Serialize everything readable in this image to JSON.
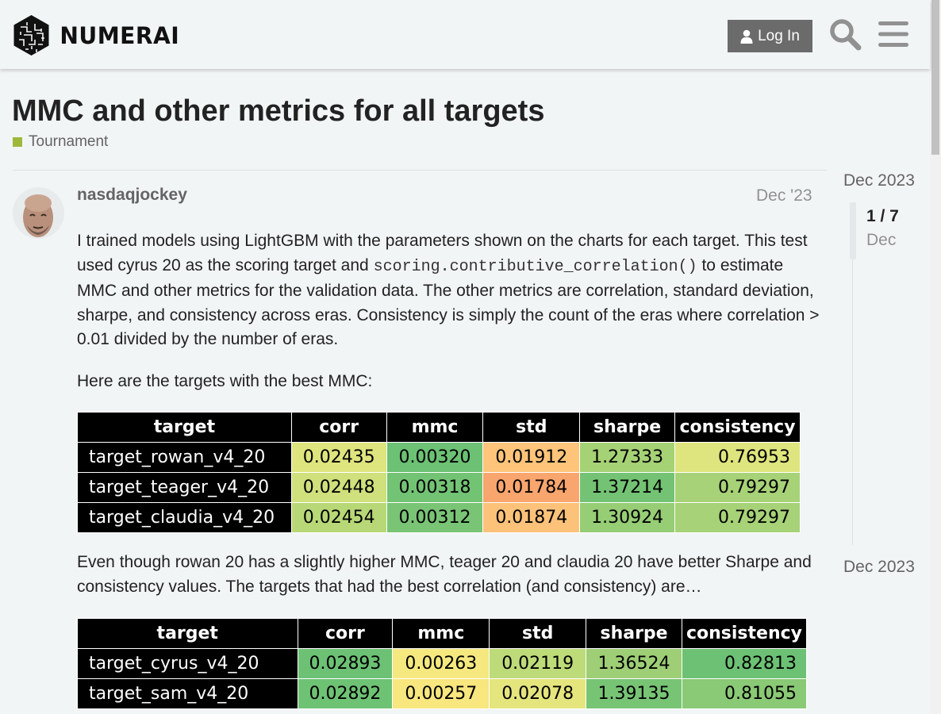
{
  "header": {
    "brand": "NUMERAI",
    "login_label": "Log In"
  },
  "topic": {
    "title": "MMC and other metrics for all targets",
    "category": "Tournament",
    "category_color": "#9eb83b"
  },
  "post": {
    "username": "nasdaqjockey",
    "date": "Dec '23",
    "p1_a": "I trained models using LightGBM with the parameters shown on the charts for each target. This test used cyrus 20 as the scoring target and ",
    "p1_code": "scoring.contributive_correlation()",
    "p1_b": " to estimate MMC and other metrics for the validation data. The other metrics are correlation, standard deviation, sharpe, and consistency across eras. Consistency is simply the count of the eras where correlation > 0.01 divided by the number of eras.",
    "p2": "Here are the targets with the best MMC:",
    "p3": "Even though rowan 20 has a slightly higher MMC, teager 20 and claudia 20 have better Sharpe and consistency values. The targets that had the best correlation (and consistency) are…"
  },
  "table_headers": [
    "target",
    "corr",
    "mmc",
    "std",
    "sharpe",
    "consistency"
  ],
  "table1": [
    {
      "target": "target_rowan_v4_20",
      "corr": "0.02435",
      "mmc": "0.00320",
      "std": "0.01912",
      "sharpe": "1.27333",
      "consistency": "0.76953",
      "colors": [
        "#dfe57e",
        "#6cc174",
        "#fdc47a",
        "#a6d276",
        "#dfe57e"
      ]
    },
    {
      "target": "target_teager_v4_20",
      "corr": "0.02448",
      "mmc": "0.00318",
      "std": "0.01784",
      "sharpe": "1.37214",
      "consistency": "0.79297",
      "colors": [
        "#cfe07c",
        "#73c375",
        "#f9a56e",
        "#74c374",
        "#a7d277"
      ]
    },
    {
      "target": "target_claudia_v4_20",
      "corr": "0.02454",
      "mmc": "0.00312",
      "std": "0.01874",
      "sharpe": "1.30924",
      "consistency": "0.79297",
      "colors": [
        "#b8d877",
        "#79c475",
        "#fdc27a",
        "#96cd75",
        "#a7d277"
      ]
    }
  ],
  "table2": [
    {
      "target": "target_cyrus_v4_20",
      "corr": "0.02893",
      "mmc": "0.00263",
      "std": "0.02119",
      "sharpe": "1.36524",
      "consistency": "0.82813",
      "colors": [
        "#6cc174",
        "#f5e87f",
        "#bedb79",
        "#9ece75",
        "#6cc174"
      ]
    },
    {
      "target": "target_sam_v4_20",
      "corr": "0.02892",
      "mmc": "0.00257",
      "std": "0.02078",
      "sharpe": "1.39135",
      "consistency": "0.81055",
      "colors": [
        "#6ec274",
        "#f8e67e",
        "#e5e57e",
        "#78c475",
        "#8ac975"
      ]
    }
  ],
  "timeline": {
    "start": "Dec 2023",
    "count": "1 / 7",
    "current_date": "Dec",
    "end": "Dec 2023"
  }
}
